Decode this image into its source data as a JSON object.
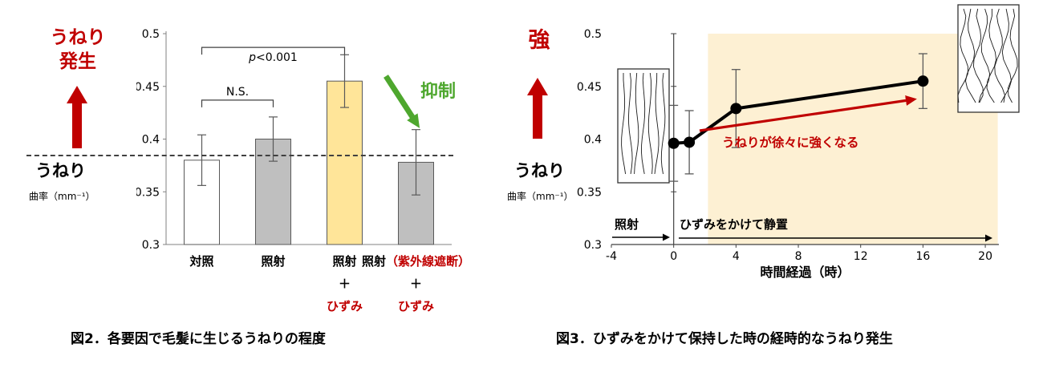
{
  "colors": {
    "red": "#c00000",
    "green": "#4ea72e",
    "bar_gray": "#bfbfbf",
    "bar_yellow": "#ffe599",
    "region_yellow": "#fdf0d3",
    "axis": "#808080",
    "error": "#595959",
    "ink": "#000000"
  },
  "fig2": {
    "side_label_top": "うねり\n発生",
    "ylabel_main": "うねり",
    "ylabel_unit": "曲率（mm⁻¹）",
    "suppression_label": "抑制",
    "caption": "図2．各要因で毛髪に生じるうねりの程度"
  },
  "fig3": {
    "side_label_top": "強",
    "ylabel_main": "うねり",
    "ylabel_unit": "曲率（mm⁻¹）",
    "caption": "図3．ひずみをかけて保持した時の経時的なうねり発生"
  },
  "chart_data": [
    {
      "type": "bar",
      "title": "図2．各要因で毛髪に生じるうねりの程度",
      "ylabel": "うねり 曲率（mm⁻¹）",
      "ylim": [
        0.3,
        0.5
      ],
      "yticks": [
        0.5,
        0.45,
        0.4,
        0.35,
        0.3
      ],
      "categories": [
        "対照",
        "照射",
        "照射＋ひずみ",
        "照射（紫外線遮断）＋ひずみ"
      ],
      "values": [
        0.38,
        0.4,
        0.455,
        0.378
      ],
      "errors": [
        0.024,
        0.021,
        0.025,
        0.031
      ],
      "bar_colors": [
        "#ffffff",
        "#bfbfbf",
        "#ffe599",
        "#bfbfbf"
      ],
      "dashed_baseline": 0.385,
      "significance": [
        {
          "from": 0,
          "to": 1,
          "label": "N.S.",
          "y": 0.437,
          "label_pos": "above"
        },
        {
          "from": 0,
          "to": 2,
          "label": "p<0.001",
          "y": 0.487,
          "label_pos": "below"
        }
      ],
      "category_labels": [
        [
          [
            {
              "t": "対照",
              "red": false
            }
          ]
        ],
        [
          [
            {
              "t": "照射",
              "red": false
            }
          ]
        ],
        [
          [
            {
              "t": "照射",
              "red": false
            }
          ],
          [
            {
              "t": "＋",
              "red": false
            }
          ],
          [
            {
              "t": "ひずみ",
              "red": true
            }
          ]
        ],
        [
          [
            {
              "t": "照射",
              "red": false
            },
            {
              "t": "（紫外線遮断）",
              "red": true
            }
          ],
          [
            {
              "t": "＋",
              "red": false
            }
          ],
          [
            {
              "t": "ひずみ",
              "red": true
            }
          ]
        ]
      ]
    },
    {
      "type": "line",
      "title": "図3．ひずみをかけて保持した時の経時的なうねり発生",
      "xlabel": "時間経過（時）",
      "ylim": [
        0.3,
        0.5
      ],
      "yticks": [
        0.5,
        0.45,
        0.4,
        0.35,
        0.3
      ],
      "xlim": [
        -4,
        20
      ],
      "xticks": [
        -4,
        0,
        4,
        8,
        12,
        16,
        20
      ],
      "x": [
        0,
        1,
        4,
        16
      ],
      "y": [
        0.396,
        0.397,
        0.429,
        0.455
      ],
      "errors": [
        0.036,
        0.03,
        0.037,
        0.026
      ],
      "shaded_region": {
        "from": 2.2,
        "to": 20.8
      },
      "trend_annotation": "うねりが徐々に強くなる",
      "phases": [
        {
          "label": "照射"
        },
        {
          "label": "ひずみをかけて静置"
        }
      ]
    }
  ]
}
